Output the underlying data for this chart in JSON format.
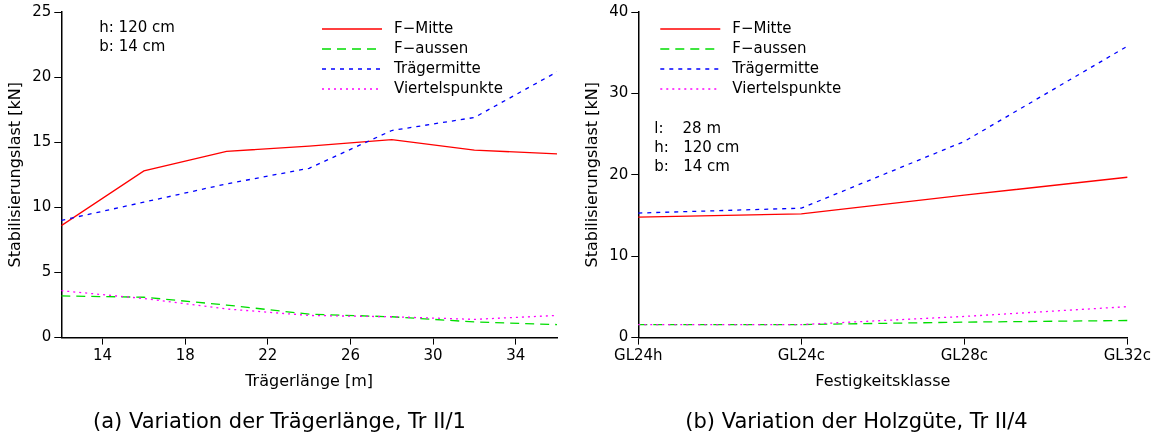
{
  "chart_data": [
    {
      "type": "line",
      "title": "(a) Variation der Trägerlänge, Tr II/1",
      "xlabel": "Trägerlänge [m]",
      "ylabel": "Stabilisierungslast [kN]",
      "x": [
        12,
        16,
        20,
        24,
        28,
        32,
        36
      ],
      "xlim": [
        12,
        36
      ],
      "xticks": [
        14,
        18,
        22,
        26,
        30,
        34
      ],
      "ylim": [
        0,
        25
      ],
      "yticks": [
        0,
        5,
        10,
        15,
        20,
        25
      ],
      "grid": false,
      "legend": "top right",
      "marker": "none",
      "annotations": [
        "h: 120 cm",
        "b: 14 cm"
      ],
      "series": [
        {
          "name": "F−Mitte",
          "color": "#ff0000",
          "line_style": "solid",
          "values": [
            8.6,
            12.8,
            14.3,
            14.7,
            15.2,
            14.4,
            14.1
          ]
        },
        {
          "name": "F−aussen",
          "color": "#00dd00",
          "line_style": "dashed",
          "values": [
            3.2,
            3.1,
            2.5,
            1.8,
            1.6,
            1.2,
            1.0
          ]
        },
        {
          "name": "Trägermitte",
          "color": "#0000ff",
          "line_style": "dashed",
          "values": [
            9.0,
            10.4,
            11.8,
            13.0,
            15.9,
            16.9,
            20.4
          ]
        },
        {
          "name": "Viertelspunkte",
          "color": "#ff00ff",
          "line_style": "dotted",
          "values": [
            3.6,
            3.0,
            2.2,
            1.7,
            1.6,
            1.4,
            1.7
          ]
        }
      ]
    },
    {
      "type": "line",
      "title": "(b) Variation der Holzgüte, Tr II/4",
      "xlabel": "Festigkeitsklasse",
      "ylabel": "Stabilisierungslast [kN]",
      "categories": [
        "GL24h",
        "GL24c",
        "GL28c",
        "GL32c"
      ],
      "ylim": [
        0,
        40
      ],
      "yticks": [
        0,
        10,
        20,
        30,
        40
      ],
      "grid": false,
      "legend": "top left",
      "marker": "none",
      "annotations": [
        "l:    28 m",
        "h:   120 cm",
        "b:   14 cm"
      ],
      "series": [
        {
          "name": "F−Mitte",
          "color": "#ff0000",
          "line_style": "solid",
          "values": [
            14.8,
            15.2,
            17.5,
            19.7
          ]
        },
        {
          "name": "F−aussen",
          "color": "#00dd00",
          "line_style": "dashed",
          "values": [
            1.6,
            1.6,
            1.9,
            2.1
          ]
        },
        {
          "name": "Trägermitte",
          "color": "#0000ff",
          "line_style": "dashed",
          "values": [
            15.3,
            15.9,
            24.1,
            35.8
          ]
        },
        {
          "name": "Viertelspunkte",
          "color": "#ff00ff",
          "line_style": "dotted",
          "values": [
            1.6,
            1.6,
            2.6,
            3.8
          ]
        }
      ]
    }
  ]
}
